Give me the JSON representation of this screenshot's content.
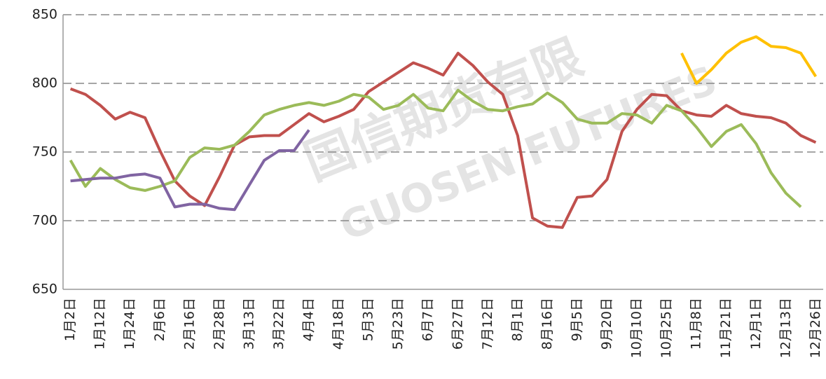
{
  "chart_data": {
    "type": "line",
    "watermark": [
      "国信期货有限",
      "GUOSEN FUTURES"
    ],
    "categories": [
      "1月2日",
      null,
      "1月12日",
      null,
      "1月24日",
      null,
      "2月6日",
      null,
      "2月16日",
      null,
      "2月28日",
      null,
      "3月13日",
      null,
      "3月22日",
      null,
      "4月4日",
      null,
      "4月18日",
      null,
      "5月3日",
      null,
      "5月23日",
      null,
      "6月7日",
      null,
      "6月27日",
      null,
      "7月12日",
      null,
      "8月1日",
      null,
      "8月16日",
      null,
      "9月5日",
      null,
      "9月20日",
      null,
      "10月10日",
      null,
      "10月25日",
      null,
      "11月8日",
      null,
      "11月21日",
      null,
      "12月1日",
      null,
      "12月13日",
      null,
      "12月26日"
    ],
    "series": [
      {
        "color": "#c0504d",
        "values": [
          796,
          792,
          784,
          774,
          779,
          775,
          751,
          729,
          718,
          711,
          732,
          755,
          761,
          762,
          762,
          770,
          778,
          772,
          776,
          781,
          794,
          801,
          808,
          815,
          811,
          806,
          822,
          813,
          801,
          792,
          762,
          702,
          696,
          695,
          717,
          718,
          730,
          765,
          781,
          792,
          791,
          780,
          777,
          776,
          784,
          778,
          776,
          775,
          771,
          762,
          757
        ]
      },
      {
        "color": "#9bbb59",
        "values": [
          744,
          725,
          738,
          730,
          724,
          722,
          725,
          729,
          746,
          753,
          752,
          755,
          765,
          777,
          781,
          784,
          786,
          784,
          787,
          792,
          790,
          781,
          784,
          792,
          782,
          780,
          795,
          787,
          781,
          780,
          783,
          785,
          793,
          786,
          774,
          771,
          771,
          778,
          777,
          771,
          784,
          780,
          768,
          754,
          765,
          770,
          756,
          735,
          720,
          710,
          null
        ]
      },
      {
        "color": "#8064a2",
        "values": [
          729,
          730,
          731,
          731,
          733,
          734,
          731,
          710,
          712,
          712,
          709,
          708,
          726,
          744,
          751,
          751,
          766,
          null,
          null,
          null,
          null,
          null,
          null,
          null,
          null,
          null,
          null,
          null,
          null,
          null,
          null,
          null,
          null,
          null,
          null,
          null,
          null,
          null,
          null,
          null,
          null,
          null,
          null,
          null,
          null,
          null,
          null,
          null,
          null,
          null,
          null
        ]
      },
      {
        "color": "#ffc000",
        "values": [
          null,
          null,
          null,
          null,
          null,
          null,
          null,
          null,
          null,
          null,
          null,
          null,
          null,
          null,
          null,
          null,
          null,
          null,
          null,
          null,
          null,
          null,
          null,
          null,
          null,
          null,
          null,
          null,
          null,
          null,
          null,
          null,
          null,
          null,
          null,
          null,
          null,
          null,
          null,
          null,
          null,
          822,
          800,
          810,
          822,
          830,
          834,
          827,
          826,
          822,
          805
        ]
      }
    ],
    "ylim": [
      650,
      850
    ],
    "yticks": [
      650,
      700,
      750,
      800,
      850
    ],
    "grid": true
  }
}
